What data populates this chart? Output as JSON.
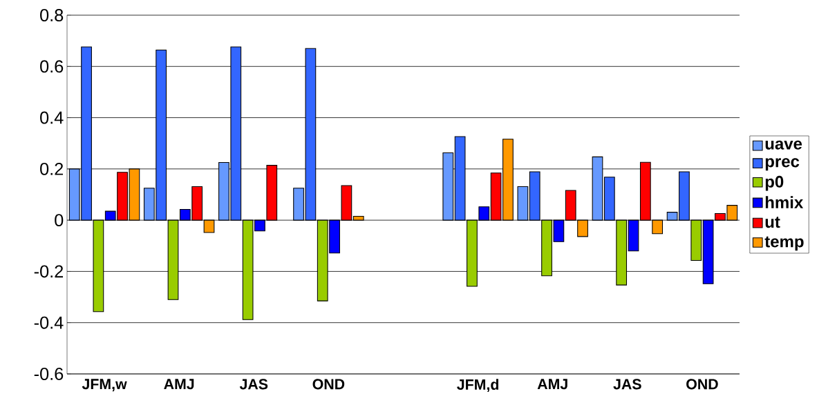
{
  "chart_data": {
    "type": "bar",
    "categories": [
      "JFM,w",
      "AMJ",
      "JAS",
      "OND",
      null,
      "JFM,d",
      "AMJ",
      "JAS",
      "OND"
    ],
    "series": [
      {
        "name": "uave",
        "color": "#6699ff",
        "values": [
          0.2,
          0.125,
          0.225,
          0.125,
          null,
          0.263,
          0.131,
          0.247,
          0.031
        ]
      },
      {
        "name": "prec",
        "color": "#3366ff",
        "values": [
          0.676,
          0.664,
          0.676,
          0.67,
          null,
          0.326,
          0.189,
          0.168,
          0.189
        ]
      },
      {
        "name": "p0",
        "color": "#99cc00",
        "values": [
          -0.357,
          -0.31,
          -0.388,
          -0.315,
          null,
          -0.258,
          -0.217,
          -0.253,
          -0.157
        ]
      },
      {
        "name": "hmix",
        "color": "#0000ff",
        "values": [
          0.035,
          0.042,
          -0.042,
          -0.128,
          null,
          0.052,
          -0.084,
          -0.12,
          -0.248
        ]
      },
      {
        "name": "ut",
        "color": "#ff0000",
        "values": [
          0.187,
          0.131,
          0.214,
          0.135,
          null,
          0.184,
          0.116,
          0.226,
          0.026
        ]
      },
      {
        "name": "temp",
        "color": "#ff9900",
        "values": [
          0.2,
          -0.048,
          null,
          0.015,
          null,
          0.316,
          -0.064,
          -0.053,
          0.058
        ]
      }
    ],
    "ylim": [
      -0.6,
      0.8
    ],
    "yticks": [
      -0.6,
      -0.4,
      -0.2,
      0,
      0.2,
      0.4,
      0.6,
      0.8
    ],
    "grid": "y",
    "legend": "right"
  }
}
